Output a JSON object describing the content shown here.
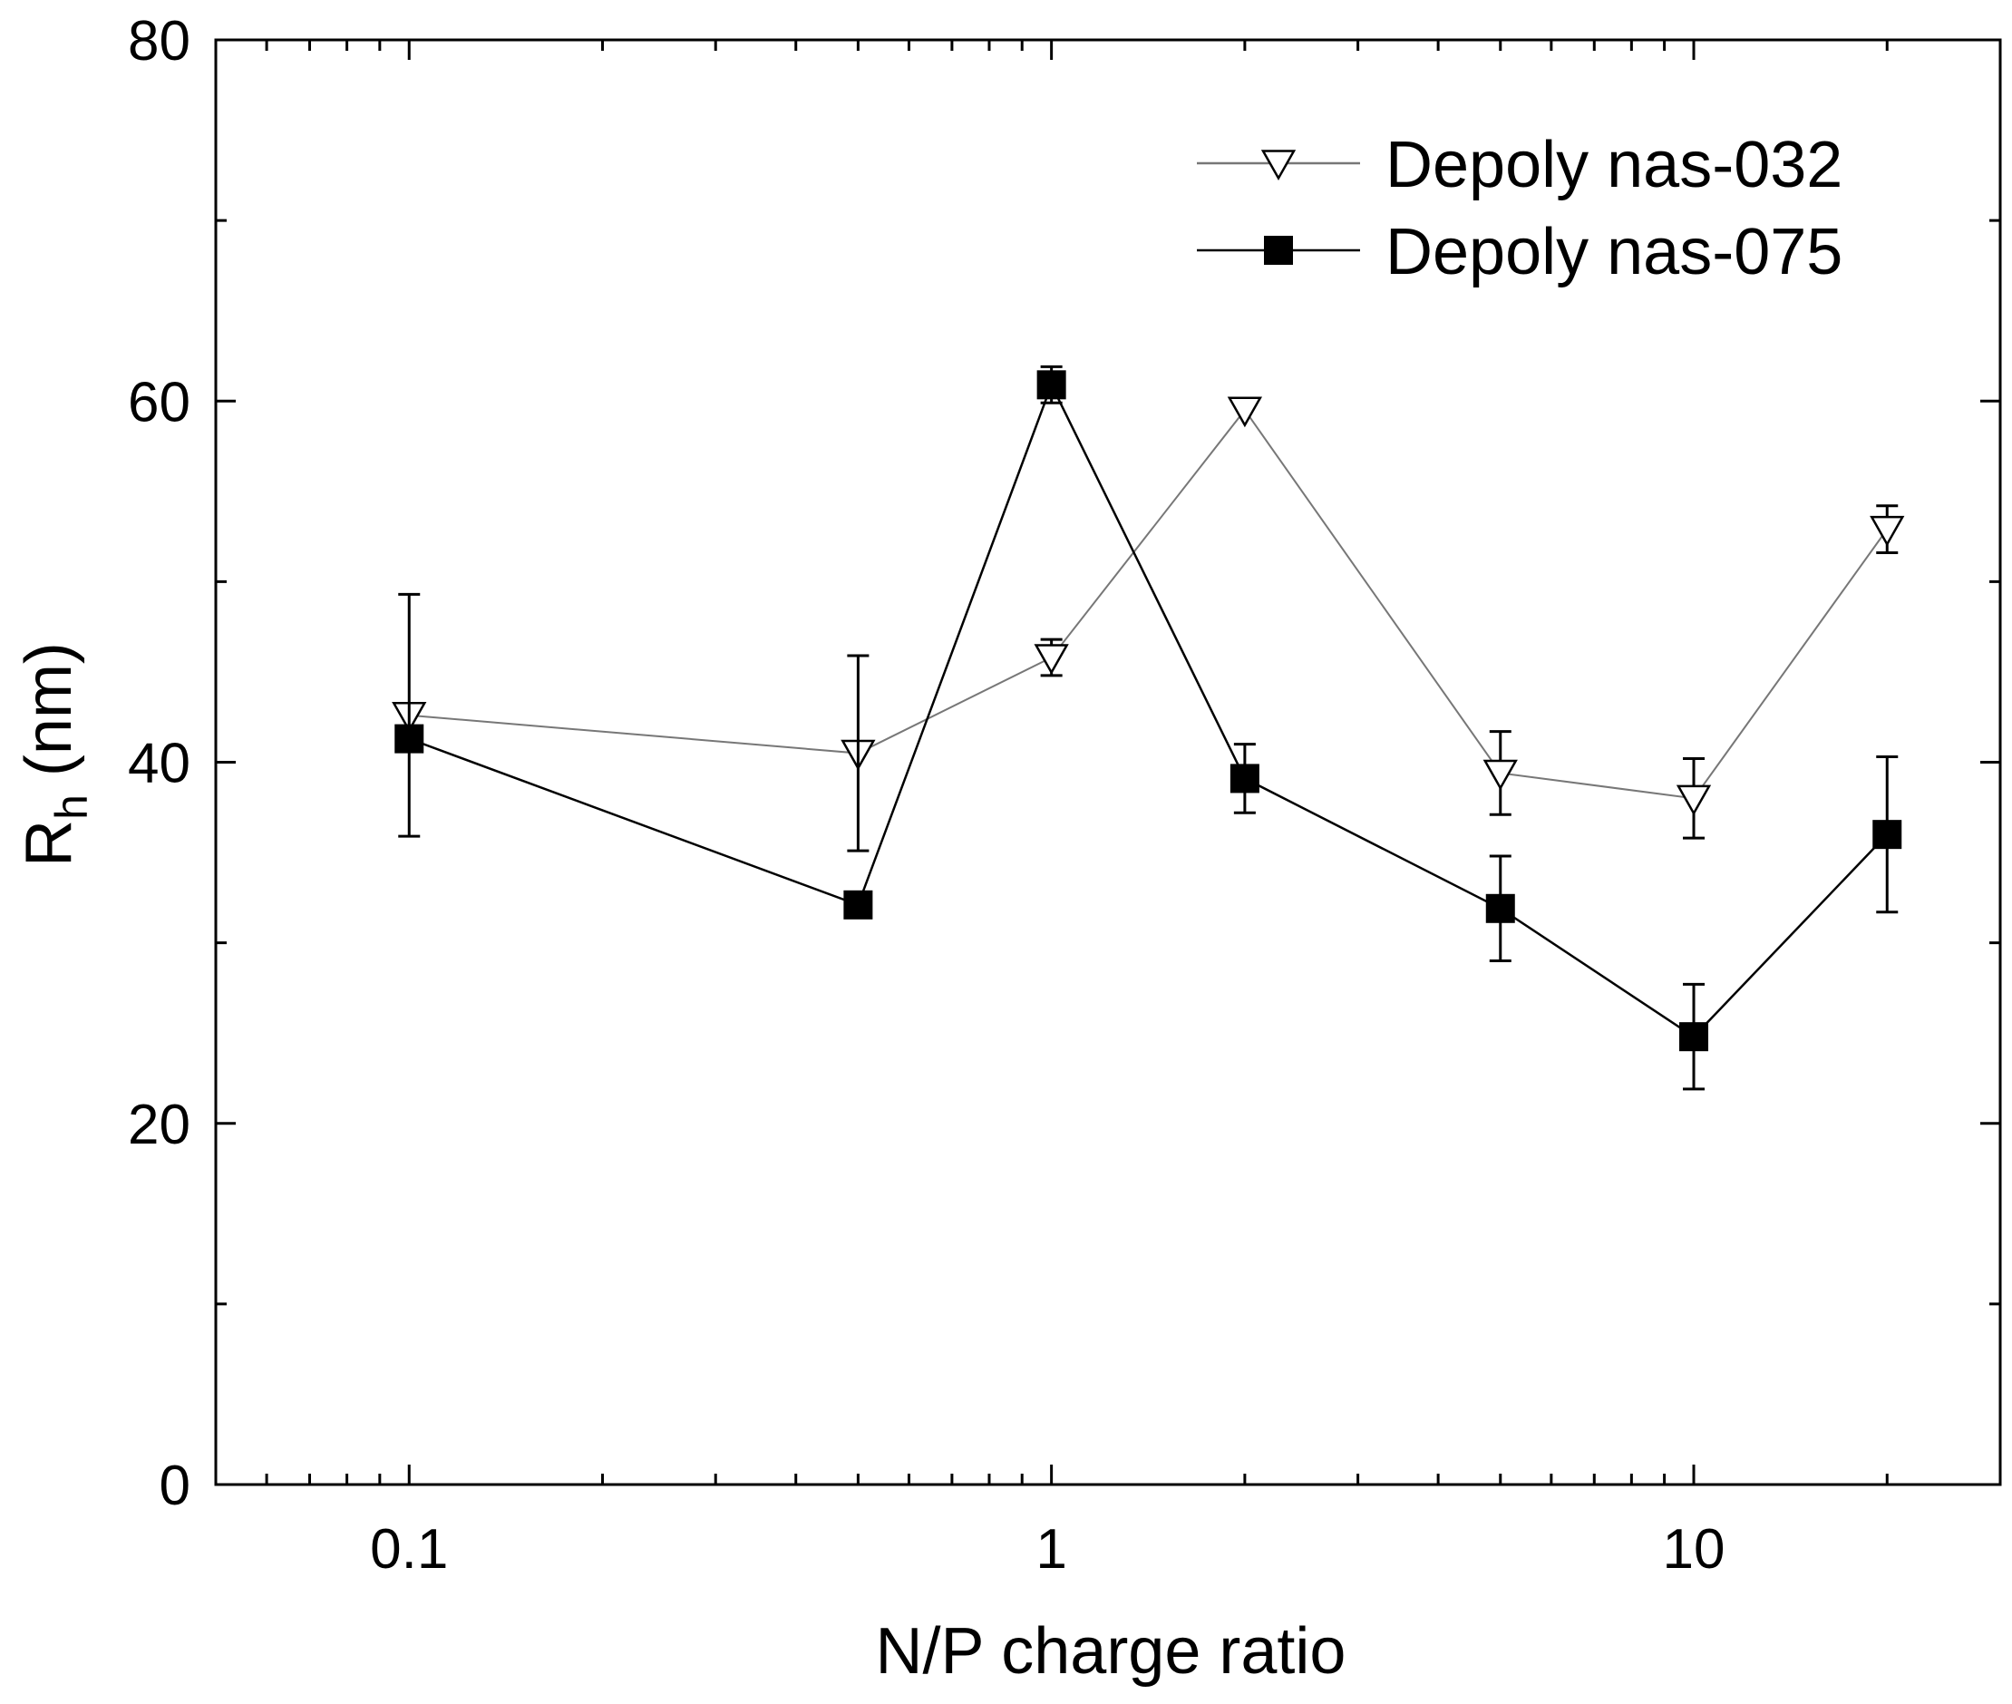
{
  "chart_data": {
    "type": "line",
    "xscale": "log",
    "xlabel": "N/P charge ratio",
    "ylabel_main": "R",
    "ylabel_sub": "h",
    "ylabel_unit": "(nm)",
    "xlim": [
      0.05,
      30
    ],
    "ylim": [
      0,
      80
    ],
    "x_ticks": [
      {
        "value": 0.1,
        "label": "0.1"
      },
      {
        "value": 1,
        "label": "1"
      },
      {
        "value": 10,
        "label": "10"
      }
    ],
    "y_ticks": [
      {
        "value": 0,
        "label": "0"
      },
      {
        "value": 20,
        "label": "20"
      },
      {
        "value": 40,
        "label": "40"
      },
      {
        "value": 60,
        "label": "60"
      },
      {
        "value": 80,
        "label": "80"
      }
    ],
    "legend_position": "top-right",
    "series": [
      {
        "name": "Depoly nas-032",
        "marker": "triangle-down-open",
        "color": "#777777",
        "x": [
          0.1,
          0.5,
          1,
          2,
          5,
          10,
          20
        ],
        "y": [
          42.6,
          40.5,
          45.8,
          59.5,
          39.4,
          38.0,
          52.9
        ],
        "err": [
          0,
          0,
          1.0,
          0,
          2.3,
          2.2,
          1.3
        ]
      },
      {
        "name": "Depoly nas-075",
        "marker": "square-filled",
        "color": "#000000",
        "x": [
          0.1,
          0.5,
          1,
          2,
          5,
          10,
          20
        ],
        "y": [
          41.3,
          32.1,
          60.9,
          39.1,
          31.9,
          24.8,
          36.0
        ],
        "err": [
          0,
          0,
          1.0,
          1.9,
          2.9,
          2.9,
          4.3
        ],
        "err_extra": [
          {
            "x": 0.1,
            "y": 42.6,
            "err": 6.7
          },
          {
            "x": 0.5,
            "y": 40.5,
            "err": 5.4
          }
        ]
      }
    ]
  }
}
